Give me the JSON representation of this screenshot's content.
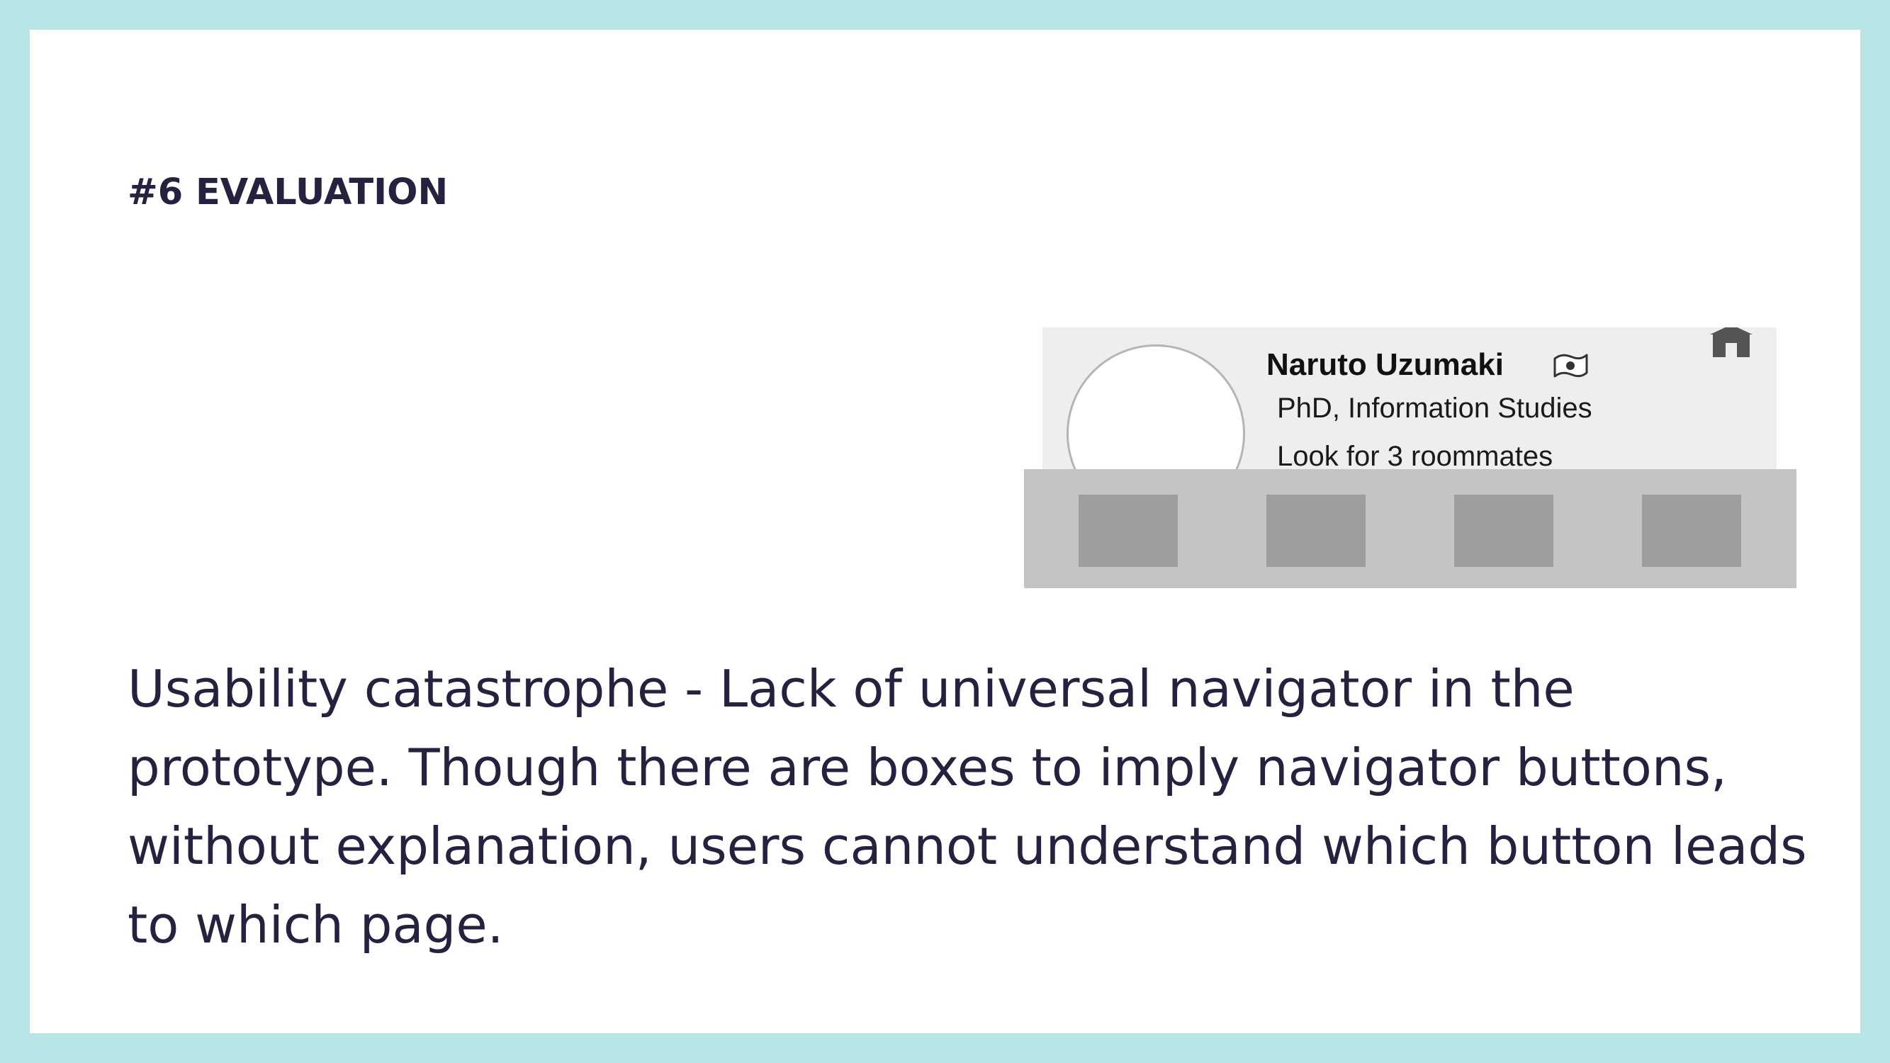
{
  "slide": {
    "section_title": "#6 EVALUATION",
    "body": "Usability catastrophe - Lack of universal navigator in the prototype. Though there are boxes to imply navigator buttons, without explanation, users cannot understand which button leads to which page."
  },
  "prototype": {
    "name": "Naruto Uzumaki",
    "degree": "PhD, Information Studies",
    "looking_for": "Look for 3 roommates",
    "icons": [
      "flag-icon",
      "home-icon"
    ],
    "nav_buttons": [
      "nav-box-1",
      "nav-box-2",
      "nav-box-3",
      "nav-box-4"
    ]
  },
  "colors": {
    "border": "#b8e6e6",
    "background": "#ffffff",
    "text": "#25223f",
    "card": "#eeeeee",
    "nav_bar": "#c4c4c4",
    "nav_box": "#9e9e9e"
  }
}
